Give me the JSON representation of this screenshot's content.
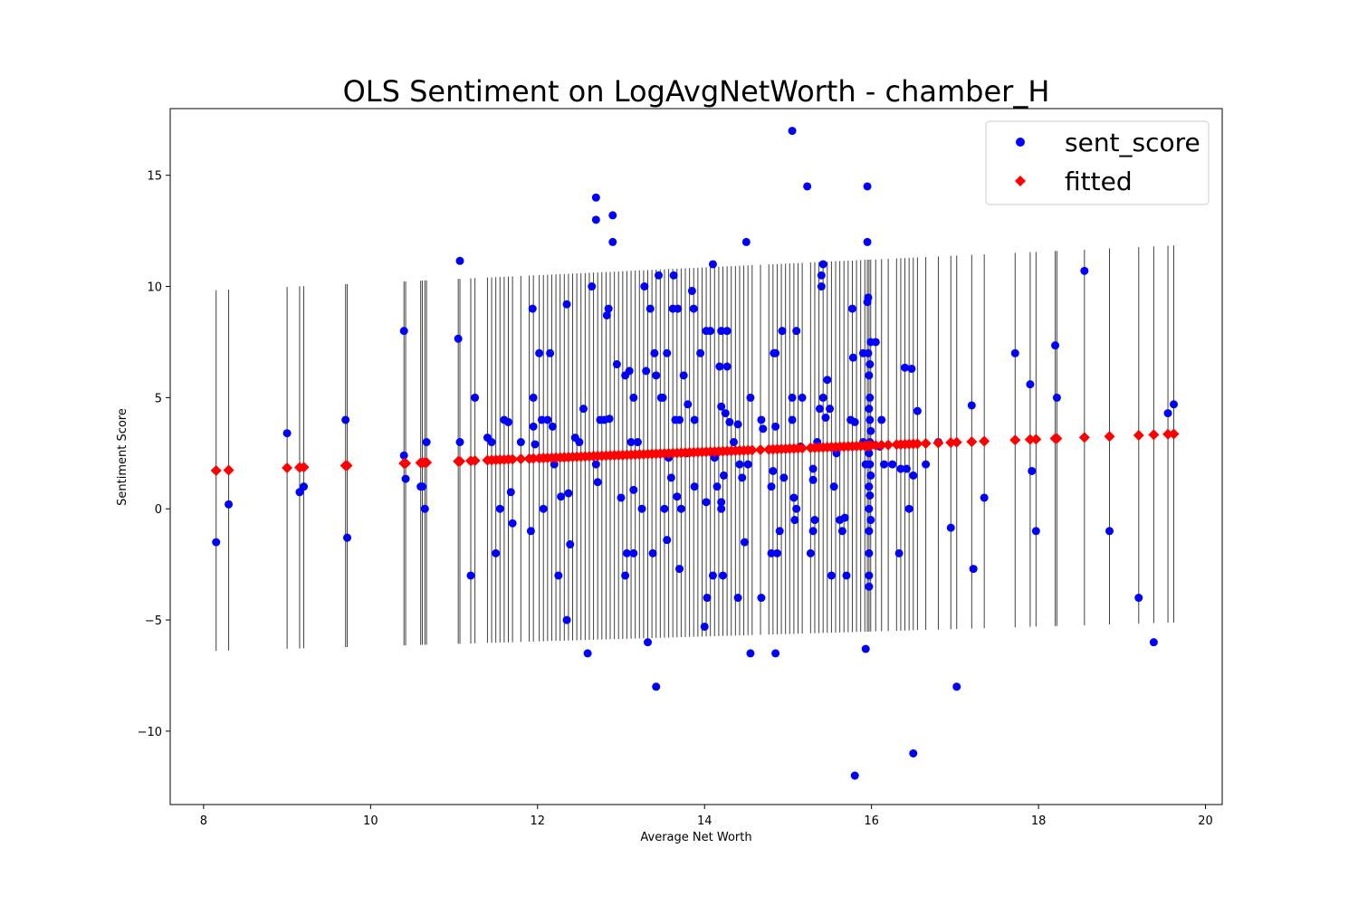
{
  "chart_data": {
    "type": "scatter",
    "title": "OLS Sentiment on LogAvgNetWorth - chamber_H",
    "xlabel": "Average Net Worth",
    "ylabel": "Sentiment Score",
    "xlim": [
      7.6,
      20.2
    ],
    "ylim": [
      -13.3,
      18.0
    ],
    "xticks": [
      8,
      10,
      12,
      14,
      16,
      18,
      20
    ],
    "yticks": [
      -10,
      -5,
      0,
      5,
      10,
      15
    ],
    "ytick_labels": [
      "−10",
      "−5",
      "0",
      "5",
      "10",
      "15"
    ],
    "legend_position": "upper-right",
    "grid": false,
    "fit": {
      "intercept": 0.55,
      "slope": 0.1435
    },
    "interval_half_width": {
      "base": 8.3,
      "slope": 0.032,
      "center": 14
    },
    "series": [
      {
        "name": "sent_score",
        "marker": "circle",
        "color": "#0000ff",
        "points": [
          [
            8.15,
            -1.5
          ],
          [
            8.3,
            0.2
          ],
          [
            9.0,
            3.4
          ],
          [
            9.15,
            0.75
          ],
          [
            9.2,
            1.0
          ],
          [
            9.7,
            4.0
          ],
          [
            9.72,
            -1.3
          ],
          [
            10.4,
            8.0
          ],
          [
            10.4,
            2.4
          ],
          [
            10.42,
            1.35
          ],
          [
            10.6,
            1.0
          ],
          [
            10.62,
            1.0
          ],
          [
            10.65,
            0.0
          ],
          [
            10.67,
            3.0
          ],
          [
            11.05,
            7.65
          ],
          [
            11.07,
            11.15
          ],
          [
            11.07,
            3.0
          ],
          [
            11.2,
            -3.0
          ],
          [
            11.25,
            5.0
          ],
          [
            11.4,
            3.2
          ],
          [
            11.45,
            3.0
          ],
          [
            11.5,
            -2.0
          ],
          [
            11.55,
            0.0
          ],
          [
            11.6,
            4.0
          ],
          [
            11.65,
            3.9
          ],
          [
            11.68,
            0.75
          ],
          [
            11.7,
            -0.65
          ],
          [
            11.8,
            3.0
          ],
          [
            11.92,
            -1.0
          ],
          [
            11.94,
            9.0
          ],
          [
            11.95,
            5.0
          ],
          [
            11.95,
            3.7
          ],
          [
            11.97,
            2.9
          ],
          [
            12.02,
            7.0
          ],
          [
            12.05,
            4.0
          ],
          [
            12.07,
            0.0
          ],
          [
            12.12,
            4.0
          ],
          [
            12.15,
            7.0
          ],
          [
            12.18,
            3.7
          ],
          [
            12.2,
            2.0
          ],
          [
            12.25,
            -3.0
          ],
          [
            12.28,
            0.55
          ],
          [
            12.32,
            2.3
          ],
          [
            12.35,
            9.2
          ],
          [
            12.35,
            -5.0
          ],
          [
            12.37,
            0.7
          ],
          [
            12.39,
            -1.6
          ],
          [
            12.45,
            3.2
          ],
          [
            12.5,
            3.0
          ],
          [
            12.55,
            4.5
          ],
          [
            12.6,
            -6.5
          ],
          [
            12.65,
            10.0
          ],
          [
            12.7,
            14.0
          ],
          [
            12.7,
            13.0
          ],
          [
            12.7,
            2.0
          ],
          [
            12.72,
            1.2
          ],
          [
            12.75,
            4.0
          ],
          [
            12.8,
            4.0
          ],
          [
            12.83,
            8.7
          ],
          [
            12.85,
            9.0
          ],
          [
            12.86,
            4.05
          ],
          [
            12.9,
            13.2
          ],
          [
            12.9,
            12.0
          ],
          [
            12.95,
            6.5
          ],
          [
            13.0,
            0.5
          ],
          [
            13.05,
            6.0
          ],
          [
            13.05,
            -3.0
          ],
          [
            13.07,
            -2.0
          ],
          [
            13.1,
            6.2
          ],
          [
            13.12,
            3.0
          ],
          [
            13.15,
            -2.0
          ],
          [
            13.15,
            0.85
          ],
          [
            13.15,
            5.0
          ],
          [
            13.2,
            3.0
          ],
          [
            13.25,
            0.0
          ],
          [
            13.28,
            10.0
          ],
          [
            13.3,
            6.2
          ],
          [
            13.32,
            -6.0
          ],
          [
            13.35,
            9.0
          ],
          [
            13.38,
            -2.0
          ],
          [
            13.4,
            7.0
          ],
          [
            13.42,
            6.0
          ],
          [
            13.42,
            -8.0
          ],
          [
            13.45,
            10.5
          ],
          [
            13.48,
            5.0
          ],
          [
            13.5,
            5.0
          ],
          [
            13.52,
            0.0
          ],
          [
            13.55,
            -1.4
          ],
          [
            13.55,
            7.0
          ],
          [
            13.57,
            2.3
          ],
          [
            13.6,
            1.4
          ],
          [
            13.62,
            9.0
          ],
          [
            13.63,
            10.5
          ],
          [
            13.65,
            4.0
          ],
          [
            13.67,
            0.55
          ],
          [
            13.68,
            9.0
          ],
          [
            13.7,
            4.0
          ],
          [
            13.7,
            -2.7
          ],
          [
            13.72,
            0.0
          ],
          [
            13.75,
            6.0
          ],
          [
            13.78,
            2.5
          ],
          [
            13.8,
            4.7
          ],
          [
            13.85,
            9.8
          ],
          [
            13.87,
            9.0
          ],
          [
            13.88,
            4.0
          ],
          [
            13.88,
            1.0
          ],
          [
            13.95,
            7.0
          ],
          [
            14.0,
            -5.3
          ],
          [
            14.02,
            8.0
          ],
          [
            14.02,
            0.3
          ],
          [
            14.03,
            -4.0
          ],
          [
            14.07,
            8.0
          ],
          [
            14.1,
            11.0
          ],
          [
            14.1,
            -3.0
          ],
          [
            14.12,
            2.3
          ],
          [
            14.15,
            1.0
          ],
          [
            14.18,
            6.4
          ],
          [
            14.2,
            8.0
          ],
          [
            14.2,
            4.6
          ],
          [
            14.2,
            0.3
          ],
          [
            14.2,
            0.0
          ],
          [
            14.22,
            -3.0
          ],
          [
            14.23,
            1.5
          ],
          [
            14.25,
            4.3
          ],
          [
            14.27,
            6.4
          ],
          [
            14.27,
            8.0
          ],
          [
            14.3,
            3.9
          ],
          [
            14.35,
            3.0
          ],
          [
            14.4,
            3.8
          ],
          [
            14.4,
            -4.0
          ],
          [
            14.42,
            2.0
          ],
          [
            14.45,
            1.4
          ],
          [
            14.48,
            -1.5
          ],
          [
            14.5,
            12.0
          ],
          [
            14.52,
            2.0
          ],
          [
            14.55,
            5.0
          ],
          [
            14.55,
            -6.5
          ],
          [
            14.68,
            4.0
          ],
          [
            14.68,
            -4.0
          ],
          [
            14.7,
            3.6
          ],
          [
            14.8,
            1.0
          ],
          [
            14.8,
            -2.0
          ],
          [
            14.82,
            1.7
          ],
          [
            14.83,
            7.0
          ],
          [
            14.85,
            -6.5
          ],
          [
            14.85,
            7.0
          ],
          [
            14.85,
            3.7
          ],
          [
            14.87,
            -2.0
          ],
          [
            14.9,
            -1.0
          ],
          [
            14.93,
            8.0
          ],
          [
            14.95,
            1.4
          ],
          [
            15.05,
            17.0
          ],
          [
            15.05,
            5.0
          ],
          [
            15.05,
            4.0
          ],
          [
            15.07,
            0.5
          ],
          [
            15.08,
            -0.5
          ],
          [
            15.1,
            8.0
          ],
          [
            15.1,
            0.0
          ],
          [
            15.15,
            2.8
          ],
          [
            15.17,
            5.0
          ],
          [
            15.23,
            14.5
          ],
          [
            15.27,
            -2.0
          ],
          [
            15.3,
            1.8
          ],
          [
            15.3,
            1.3
          ],
          [
            15.3,
            -1.0
          ],
          [
            15.32,
            -0.5
          ],
          [
            15.35,
            3.0
          ],
          [
            15.38,
            4.5
          ],
          [
            15.4,
            10.0
          ],
          [
            15.4,
            10.5
          ],
          [
            15.42,
            11.0
          ],
          [
            15.42,
            5.0
          ],
          [
            15.45,
            4.1
          ],
          [
            15.47,
            5.8
          ],
          [
            15.5,
            4.5
          ],
          [
            15.52,
            -3.0
          ],
          [
            15.55,
            1.0
          ],
          [
            15.58,
            2.5
          ],
          [
            15.62,
            -0.5
          ],
          [
            15.65,
            -1.0
          ],
          [
            15.68,
            -0.4
          ],
          [
            15.7,
            -3.0
          ],
          [
            15.75,
            4.0
          ],
          [
            15.77,
            9.0
          ],
          [
            15.78,
            6.8
          ],
          [
            15.8,
            3.9
          ],
          [
            15.8,
            -12.0
          ],
          [
            15.9,
            3.0
          ],
          [
            15.9,
            7.0
          ],
          [
            15.93,
            2.0
          ],
          [
            15.93,
            -6.3
          ],
          [
            15.95,
            14.5
          ],
          [
            15.95,
            12.0
          ],
          [
            15.95,
            9.3
          ],
          [
            15.96,
            9.5
          ],
          [
            15.96,
            7.0
          ],
          [
            15.97,
            6.0
          ],
          [
            15.97,
            4.5
          ],
          [
            15.97,
            2.5
          ],
          [
            15.97,
            1.0
          ],
          [
            15.97,
            0.0
          ],
          [
            15.97,
            -1.0
          ],
          [
            15.97,
            -2.0
          ],
          [
            15.97,
            -3.0
          ],
          [
            15.97,
            -3.5
          ],
          [
            15.98,
            6.5
          ],
          [
            15.98,
            5.0
          ],
          [
            15.98,
            4.0
          ],
          [
            15.98,
            3.0
          ],
          [
            15.98,
            2.0
          ],
          [
            15.98,
            0.6
          ],
          [
            15.99,
            7.5
          ],
          [
            15.99,
            3.5
          ],
          [
            15.99,
            1.5
          ],
          [
            15.99,
            -0.5
          ],
          [
            16.05,
            7.5
          ],
          [
            16.1,
            2.8
          ],
          [
            16.12,
            4.0
          ],
          [
            16.15,
            2.0
          ],
          [
            16.25,
            2.0
          ],
          [
            16.33,
            -2.0
          ],
          [
            16.35,
            1.8
          ],
          [
            16.4,
            6.35
          ],
          [
            16.42,
            1.8
          ],
          [
            16.45,
            0.0
          ],
          [
            16.48,
            6.3
          ],
          [
            16.5,
            1.5
          ],
          [
            16.5,
            -11.0
          ],
          [
            16.55,
            4.4
          ],
          [
            16.65,
            2.0
          ],
          [
            16.8,
            3.0
          ],
          [
            16.95,
            -0.85
          ],
          [
            17.02,
            -8.0
          ],
          [
            17.2,
            4.65
          ],
          [
            17.22,
            -2.7
          ],
          [
            17.35,
            0.5
          ],
          [
            17.72,
            7.0
          ],
          [
            17.9,
            5.6
          ],
          [
            17.92,
            1.7
          ],
          [
            17.97,
            -1.0
          ],
          [
            18.2,
            7.35
          ],
          [
            18.22,
            5.0
          ],
          [
            18.55,
            10.7
          ],
          [
            18.85,
            -1.0
          ],
          [
            19.2,
            -4.0
          ],
          [
            19.38,
            -6.0
          ],
          [
            19.55,
            4.3
          ],
          [
            19.62,
            4.7
          ]
        ]
      },
      {
        "name": "fitted",
        "marker": "diamond",
        "color": "#ff0000",
        "x": [
          8.15,
          8.3,
          9.0,
          9.15,
          9.2,
          9.7,
          9.72,
          10.4,
          10.42,
          10.6,
          10.62,
          10.65,
          10.67,
          11.05,
          11.07,
          11.2,
          11.25,
          11.4,
          11.45,
          11.5,
          11.55,
          11.6,
          11.65,
          11.7,
          11.8,
          11.9,
          11.95,
          12.02,
          12.07,
          12.12,
          12.17,
          12.22,
          12.27,
          12.32,
          12.37,
          12.42,
          12.47,
          12.52,
          12.57,
          12.62,
          12.67,
          12.72,
          12.77,
          12.82,
          12.87,
          12.92,
          12.97,
          13.02,
          13.07,
          13.12,
          13.17,
          13.22,
          13.27,
          13.32,
          13.37,
          13.42,
          13.47,
          13.52,
          13.57,
          13.62,
          13.67,
          13.72,
          13.77,
          13.82,
          13.87,
          13.92,
          13.97,
          14.02,
          14.07,
          14.12,
          14.17,
          14.22,
          14.27,
          14.32,
          14.37,
          14.42,
          14.47,
          14.52,
          14.57,
          14.67,
          14.77,
          14.82,
          14.87,
          14.92,
          14.97,
          15.02,
          15.07,
          15.12,
          15.17,
          15.27,
          15.32,
          15.37,
          15.42,
          15.47,
          15.52,
          15.57,
          15.62,
          15.67,
          15.72,
          15.77,
          15.82,
          15.87,
          15.92,
          15.95,
          15.97,
          15.99,
          16.05,
          16.12,
          16.2,
          16.3,
          16.35,
          16.4,
          16.45,
          16.5,
          16.55,
          16.65,
          16.8,
          16.95,
          17.02,
          17.2,
          17.35,
          17.72,
          17.9,
          17.97,
          18.2,
          18.22,
          18.55,
          18.85,
          19.2,
          19.38,
          19.55,
          19.62
        ]
      }
    ]
  }
}
